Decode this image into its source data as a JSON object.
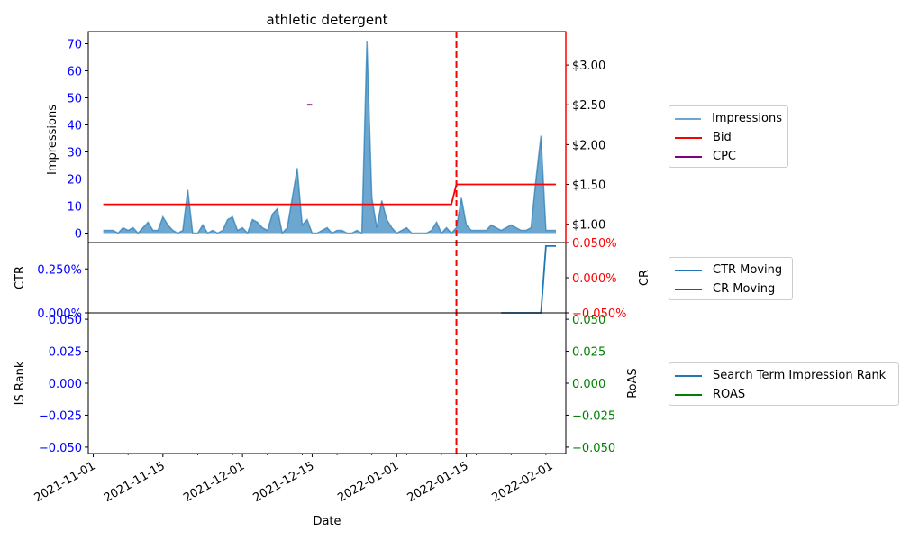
{
  "chart_data": [
    {
      "type": "area",
      "title": "athletic detergent",
      "ylabel_left": "Impressions",
      "ylabel_right": "",
      "ylim_left": [
        -3.5,
        74.5
      ],
      "yticks_left": [
        "0",
        "10",
        "20",
        "30",
        "40",
        "50",
        "60",
        "70"
      ],
      "ylim_right": [
        0.77,
        3.42
      ],
      "yticks_right": [
        "$1.00",
        "$1.50",
        "$2.00",
        "$2.50",
        "$3.00"
      ],
      "impressions_series": {
        "name": "Impressions",
        "color": "#1f77b4",
        "x": [
          "2021-11-03",
          "2021-11-04",
          "2021-11-05",
          "2021-11-06",
          "2021-11-07",
          "2021-11-08",
          "2021-11-09",
          "2021-11-10",
          "2021-11-11",
          "2021-11-12",
          "2021-11-13",
          "2021-11-14",
          "2021-11-15",
          "2021-11-16",
          "2021-11-17",
          "2021-11-18",
          "2021-11-19",
          "2021-11-20",
          "2021-11-21",
          "2021-11-22",
          "2021-11-23",
          "2021-11-24",
          "2021-11-25",
          "2021-11-26",
          "2021-11-27",
          "2021-11-28",
          "2021-11-29",
          "2021-11-30",
          "2021-12-01",
          "2021-12-02",
          "2021-12-03",
          "2021-12-04",
          "2021-12-05",
          "2021-12-06",
          "2021-12-07",
          "2021-12-08",
          "2021-12-09",
          "2021-12-10",
          "2021-12-11",
          "2021-12-12",
          "2021-12-13",
          "2021-12-14",
          "2021-12-15",
          "2021-12-16",
          "2021-12-17",
          "2021-12-18",
          "2021-12-19",
          "2021-12-20",
          "2021-12-21",
          "2021-12-22",
          "2021-12-23",
          "2021-12-24",
          "2021-12-25",
          "2021-12-26",
          "2021-12-27",
          "2021-12-28",
          "2021-12-29",
          "2021-12-30",
          "2021-12-31",
          "2022-01-01",
          "2022-01-02",
          "2022-01-03",
          "2022-01-04",
          "2022-01-05",
          "2022-01-06",
          "2022-01-07",
          "2022-01-08",
          "2022-01-09",
          "2022-01-10",
          "2022-01-11",
          "2022-01-12",
          "2022-01-13",
          "2022-01-14",
          "2022-01-15",
          "2022-01-16",
          "2022-01-17",
          "2022-01-18",
          "2022-01-19",
          "2022-01-20",
          "2022-01-21",
          "2022-01-22",
          "2022-01-23",
          "2022-01-24",
          "2022-01-25",
          "2022-01-26",
          "2022-01-27",
          "2022-01-28",
          "2022-01-29",
          "2022-01-30",
          "2022-01-31",
          "2022-02-01",
          "2022-02-02"
        ],
        "values": [
          1,
          1,
          1,
          0,
          2,
          1,
          2,
          0,
          2,
          4,
          1,
          1,
          6,
          3,
          1,
          0,
          1,
          16,
          0,
          0,
          3,
          0,
          1,
          0,
          1,
          5,
          6,
          1,
          2,
          0,
          5,
          4,
          2,
          1,
          7,
          9,
          0,
          2,
          13,
          24,
          3,
          5,
          0,
          0,
          1,
          2,
          0,
          1,
          1,
          0,
          0,
          1,
          0,
          71,
          13,
          2,
          12,
          5,
          2,
          0,
          1,
          2,
          0,
          0,
          0,
          0,
          1,
          4,
          0,
          2,
          0,
          2,
          13,
          3,
          1,
          1,
          1,
          1,
          3,
          2,
          1,
          2,
          3,
          2,
          1,
          1,
          2,
          20,
          36,
          1,
          1,
          1
        ]
      },
      "bid_series": {
        "name": "Bid",
        "color": "#ff0000",
        "x": [
          "2021-11-03",
          "2022-01-12",
          "2022-01-13",
          "2022-02-02"
        ],
        "values": [
          1.25,
          1.25,
          1.5,
          1.5
        ]
      },
      "cpc_series": {
        "name": "CPC",
        "color": "#800080",
        "x": [
          "2021-12-14",
          "2021-12-15"
        ],
        "values": [
          2.5,
          2.5
        ]
      },
      "vline": {
        "date": "2022-01-13",
        "color": "#ff0000"
      },
      "legend": [
        "Impressions",
        "Bid",
        "CPC"
      ]
    },
    {
      "type": "line",
      "ylabel_left": "CTR",
      "ylabel_right": "CR",
      "ylim_left": [
        0.0,
        0.4
      ],
      "yticks_left": [
        "0.000%",
        "0.250%"
      ],
      "ylim_right": [
        -0.05,
        0.05
      ],
      "yticks_right": [
        "−0.050%",
        "0.000%",
        "0.050%"
      ],
      "ctr_series": {
        "name": "CTR Moving",
        "color": "#1f77b4",
        "x": [
          "2022-01-22",
          "2022-01-23",
          "2022-01-24",
          "2022-01-25",
          "2022-01-26",
          "2022-01-27",
          "2022-01-28",
          "2022-01-29",
          "2022-01-30",
          "2022-01-31",
          "2022-02-01",
          "2022-02-02"
        ],
        "values": [
          0,
          0,
          0,
          0,
          0,
          0,
          0,
          0,
          0,
          0.38,
          0.38,
          0.38
        ]
      },
      "cr_series": {
        "name": "CR Moving",
        "color": "#ff0000",
        "x": [],
        "values": []
      },
      "legend": [
        "CTR Moving",
        "CR Moving"
      ]
    },
    {
      "type": "line",
      "ylabel_left": "IS Rank",
      "ylabel_right": "RoAS",
      "xlabel": "Date",
      "ylim_left": [
        -0.055,
        0.055
      ],
      "yticks_left": [
        "−0.050",
        "−0.025",
        "0.000",
        "0.025",
        "0.050"
      ],
      "ylim_right": [
        -0.055,
        0.055
      ],
      "yticks_right": [
        "−0.050",
        "−0.025",
        "0.000",
        "0.025",
        "0.050"
      ],
      "is_series": {
        "name": "Search Term Impression Rank",
        "color": "#1f77b4",
        "x": [],
        "values": []
      },
      "roas_series": {
        "name": "ROAS",
        "color": "#008000",
        "x": [],
        "values": []
      },
      "legend": [
        "Search Term Impression Rank",
        "ROAS"
      ]
    }
  ],
  "x_axis": {
    "xlim": [
      "2021-10-31",
      "2022-02-04"
    ],
    "ticks": [
      "2021-11-01",
      "2021-11-15",
      "2021-12-01",
      "2021-12-15",
      "2022-01-01",
      "2022-01-15",
      "2022-02-01"
    ]
  },
  "colors": {
    "left_tick": "#0000ff",
    "bid_right_tick": "#000000",
    "cr_right_tick": "#ff0000",
    "roas_right_tick": "#008000",
    "right_spine_top": "#ff0000"
  }
}
